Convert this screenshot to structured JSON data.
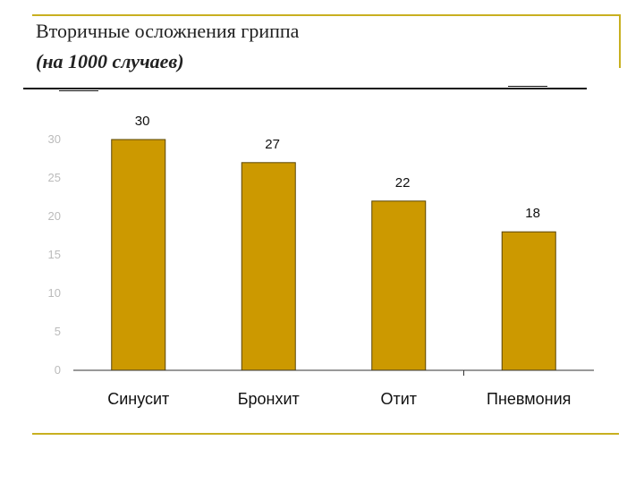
{
  "slide": {
    "title": "Вторичные осложнения гриппа",
    "subtitle": "(на 1000 случаев)"
  },
  "colors": {
    "bar": "#cc9900",
    "bar_stroke": "#5a4500",
    "frame": "#c8b020"
  },
  "chart_data": {
    "type": "bar",
    "categories": [
      "Синусит",
      "Бронхит",
      "Отит",
      "Пневмония"
    ],
    "values": [
      30,
      27,
      22,
      18
    ],
    "ylim": [
      0,
      30
    ],
    "yticks": [
      0,
      5,
      10,
      15,
      20,
      25,
      30
    ],
    "title": "",
    "xlabel": "",
    "ylabel": "",
    "grid": false,
    "data_labels": true
  }
}
